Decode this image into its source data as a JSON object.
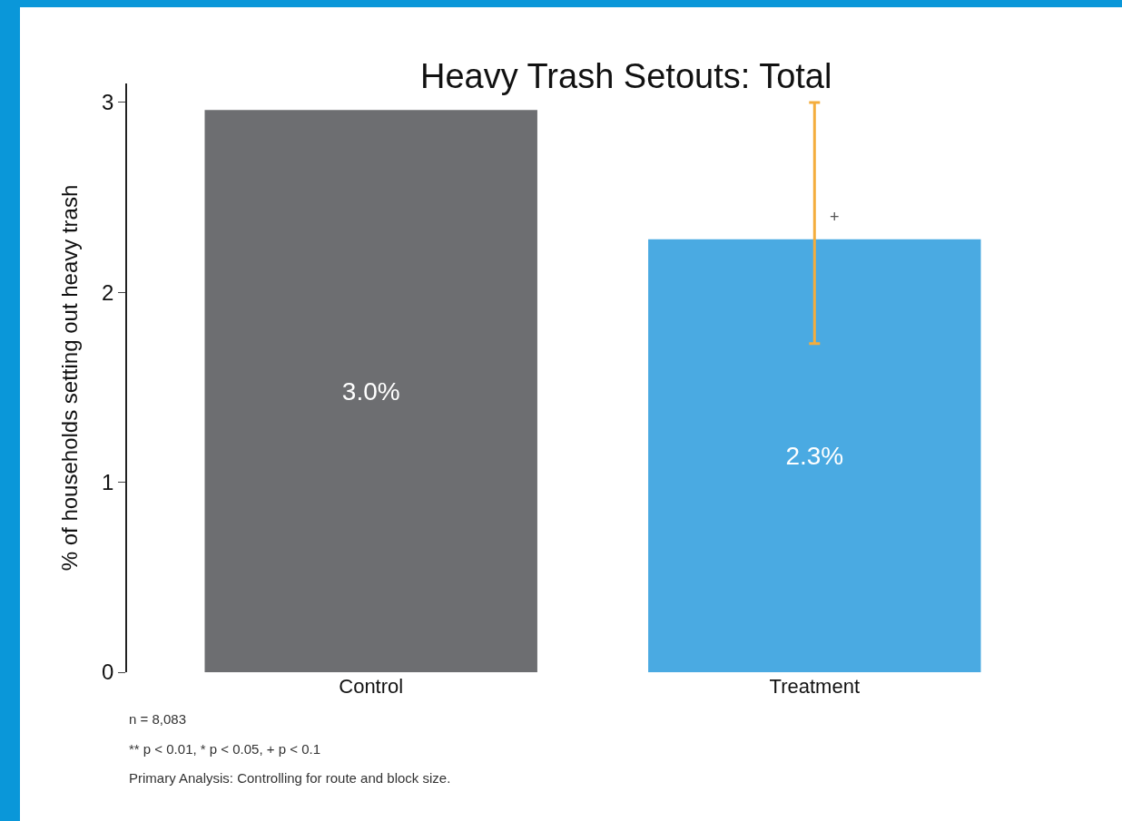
{
  "chart_data": {
    "type": "bar",
    "title": "Heavy Trash Setouts: Total",
    "ylabel": "% of households setting out heavy trash",
    "categories": [
      "Control",
      "Treatment"
    ],
    "values": [
      2.96,
      2.28
    ],
    "colors": [
      "#6d6e71",
      "#4aaae2"
    ],
    "value_labels": [
      "3.0%",
      "2.3%"
    ],
    "errors": [
      null,
      [
        1.73,
        3.0
      ]
    ],
    "ylim": [
      0,
      3.1
    ],
    "yticks": [
      0,
      1,
      2,
      3
    ],
    "grid": false,
    "annotations": [
      {
        "text": "+",
        "x": "Treatment",
        "y": 2.4
      },
      "n = 8,083",
      "** p < 0.01, * p < 0.05, + p < 0.1",
      "Primary Analysis: Controlling for route and block size."
    ]
  }
}
